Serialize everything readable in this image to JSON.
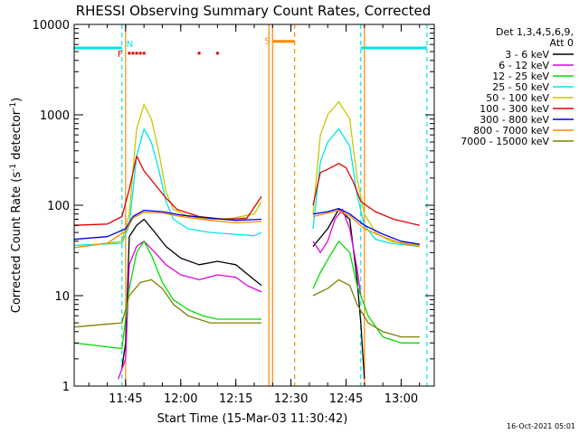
{
  "chart_data": {
    "type": "line",
    "title": "RHESSI Observing Summary Count Rates, Corrected",
    "xlabel": "Start Time (15-Mar-03 11:30:42)",
    "ylabel": "Corrected Count Rate (s",
    "ylabel_sup": "-1",
    "ylabel_mid": " detector",
    "ylabel_end": ")",
    "y_scale": "log",
    "ylim": [
      1,
      10000
    ],
    "xlim": [
      "11:31",
      "13:09"
    ],
    "y_ticks": [
      {
        "value": 1,
        "label": "1"
      },
      {
        "value": 10,
        "label": "10"
      },
      {
        "value": 100,
        "label": "100"
      },
      {
        "value": 1000,
        "label": "1000"
      },
      {
        "value": 10000,
        "label": "10000"
      }
    ],
    "x_ticks": [
      {
        "value": "11:45",
        "label": "11:45"
      },
      {
        "value": "12:00",
        "label": "12:00"
      },
      {
        "value": "12:15",
        "label": "12:15"
      },
      {
        "value": "12:30",
        "label": "12:30"
      },
      {
        "value": "12:45",
        "label": "12:45"
      },
      {
        "value": "13:00",
        "label": "13:00"
      }
    ],
    "legend_title": "Det 1,3,4,5,6,9,",
    "legend_subtitle": "Att 0",
    "legend_position": "right",
    "series": [
      {
        "name": "3 - 6 keV",
        "color": "#000000",
        "points": [
          [
            "11:44",
            1.6
          ],
          [
            "11:45",
            3
          ],
          [
            "11:46",
            45
          ],
          [
            "11:48",
            60
          ],
          [
            "11:50",
            70
          ],
          [
            "11:53",
            50
          ],
          [
            "11:56",
            35
          ],
          [
            "12:00",
            26
          ],
          [
            "12:05",
            22
          ],
          [
            "12:10",
            24
          ],
          [
            "12:15",
            22
          ],
          [
            "12:20",
            15
          ],
          [
            "12:22",
            13
          ],
          [
            "12:35",
            null
          ],
          [
            "12:36",
            35
          ],
          [
            "12:40",
            55
          ],
          [
            "12:43",
            90
          ],
          [
            "12:46",
            70
          ],
          [
            "12:48",
            15
          ],
          [
            "12:49",
            5
          ],
          [
            "12:50",
            1.2
          ]
        ]
      },
      {
        "name": "6 - 12 keV",
        "color": "#e000e0",
        "points": [
          [
            "11:43",
            1.2
          ],
          [
            "11:45",
            2
          ],
          [
            "11:46",
            22
          ],
          [
            "11:48",
            35
          ],
          [
            "11:50",
            40
          ],
          [
            "11:53",
            30
          ],
          [
            "11:56",
            22
          ],
          [
            "12:00",
            17
          ],
          [
            "12:05",
            15
          ],
          [
            "12:10",
            17
          ],
          [
            "12:15",
            16
          ],
          [
            "12:18",
            13
          ],
          [
            "12:22",
            11
          ],
          [
            "12:35",
            null
          ],
          [
            "12:36",
            40
          ],
          [
            "12:38",
            30
          ],
          [
            "12:40",
            40
          ],
          [
            "12:42",
            70
          ],
          [
            "12:44",
            90
          ],
          [
            "12:46",
            55
          ],
          [
            "12:48",
            20
          ],
          [
            "12:49",
            10
          ]
        ]
      },
      {
        "name": "12 - 25 keV",
        "color": "#00dd00",
        "points": [
          [
            "11:31",
            3
          ],
          [
            "11:44",
            2.6
          ],
          [
            "11:46",
            12
          ],
          [
            "11:48",
            30
          ],
          [
            "11:50",
            40
          ],
          [
            "11:52",
            28
          ],
          [
            "11:55",
            14
          ],
          [
            "11:58",
            9
          ],
          [
            "12:02",
            7
          ],
          [
            "12:06",
            6
          ],
          [
            "12:10",
            5.5
          ],
          [
            "12:15",
            5.5
          ],
          [
            "12:20",
            5.5
          ],
          [
            "12:22",
            5.5
          ],
          [
            "12:35",
            null
          ],
          [
            "12:36",
            12
          ],
          [
            "12:38",
            18
          ],
          [
            "12:40",
            25
          ],
          [
            "12:43",
            40
          ],
          [
            "12:46",
            30
          ],
          [
            "12:48",
            13
          ],
          [
            "12:51",
            6
          ],
          [
            "12:55",
            3.5
          ],
          [
            "13:00",
            3
          ],
          [
            "13:05",
            3
          ]
        ]
      },
      {
        "name": "25 - 50 keV",
        "color": "#00e6e6",
        "points": [
          [
            "11:31",
            36
          ],
          [
            "11:44",
            38
          ],
          [
            "11:46",
            60
          ],
          [
            "11:48",
            350
          ],
          [
            "11:50",
            700
          ],
          [
            "11:52",
            500
          ],
          [
            "11:54",
            250
          ],
          [
            "11:56",
            110
          ],
          [
            "11:58",
            70
          ],
          [
            "12:02",
            55
          ],
          [
            "12:08",
            50
          ],
          [
            "12:14",
            48
          ],
          [
            "12:20",
            46
          ],
          [
            "12:22",
            50
          ],
          [
            "12:35",
            null
          ],
          [
            "12:36",
            55
          ],
          [
            "12:38",
            300
          ],
          [
            "12:40",
            500
          ],
          [
            "12:43",
            700
          ],
          [
            "12:46",
            450
          ],
          [
            "12:48",
            130
          ],
          [
            "12:50",
            60
          ],
          [
            "12:53",
            42
          ],
          [
            "12:57",
            38
          ],
          [
            "13:05",
            35
          ]
        ]
      },
      {
        "name": "50 - 100 keV",
        "color": "#c8c800",
        "points": [
          [
            "11:31",
            34
          ],
          [
            "11:44",
            40
          ],
          [
            "11:46",
            80
          ],
          [
            "11:48",
            700
          ],
          [
            "11:50",
            1300
          ],
          [
            "11:52",
            900
          ],
          [
            "11:54",
            400
          ],
          [
            "11:56",
            140
          ],
          [
            "11:58",
            90
          ],
          [
            "12:02",
            75
          ],
          [
            "12:08",
            70
          ],
          [
            "12:14",
            72
          ],
          [
            "12:20",
            80
          ],
          [
            "12:22",
            110
          ],
          [
            "12:35",
            null
          ],
          [
            "12:36",
            80
          ],
          [
            "12:38",
            600
          ],
          [
            "12:40",
            1000
          ],
          [
            "12:43",
            1400
          ],
          [
            "12:46",
            900
          ],
          [
            "12:48",
            200
          ],
          [
            "12:50",
            80
          ],
          [
            "12:53",
            50
          ],
          [
            "12:57",
            40
          ],
          [
            "13:05",
            36
          ]
        ]
      },
      {
        "name": "100 - 300 keV",
        "color": "#e00000",
        "points": [
          [
            "11:31",
            60
          ],
          [
            "11:40",
            62
          ],
          [
            "11:44",
            75
          ],
          [
            "11:46",
            150
          ],
          [
            "11:48",
            350
          ],
          [
            "11:50",
            240
          ],
          [
            "11:53",
            170
          ],
          [
            "11:56",
            120
          ],
          [
            "11:59",
            90
          ],
          [
            "12:05",
            75
          ],
          [
            "12:12",
            70
          ],
          [
            "12:18",
            72
          ],
          [
            "12:22",
            125
          ],
          [
            "12:35",
            null
          ],
          [
            "12:36",
            100
          ],
          [
            "12:38",
            230
          ],
          [
            "12:40",
            250
          ],
          [
            "12:43",
            290
          ],
          [
            "12:45",
            260
          ],
          [
            "12:47",
            180
          ],
          [
            "12:49",
            110
          ],
          [
            "12:53",
            85
          ],
          [
            "12:58",
            70
          ],
          [
            "13:05",
            60
          ]
        ]
      },
      {
        "name": "300 - 800 keV",
        "color": "#0000e0",
        "points": [
          [
            "11:31",
            42
          ],
          [
            "11:40",
            45
          ],
          [
            "11:45",
            55
          ],
          [
            "11:47",
            75
          ],
          [
            "11:50",
            88
          ],
          [
            "11:55",
            85
          ],
          [
            "12:00",
            78
          ],
          [
            "12:08",
            72
          ],
          [
            "12:15",
            68
          ],
          [
            "12:22",
            70
          ],
          [
            "12:35",
            null
          ],
          [
            "12:36",
            80
          ],
          [
            "12:40",
            85
          ],
          [
            "12:43",
            92
          ],
          [
            "12:46",
            80
          ],
          [
            "12:50",
            60
          ],
          [
            "12:55",
            48
          ],
          [
            "13:00",
            40
          ],
          [
            "13:05",
            37
          ]
        ]
      },
      {
        "name": "800 - 7000 keV",
        "color": "#ff8800",
        "points": [
          [
            "11:31",
            34
          ],
          [
            "11:40",
            38
          ],
          [
            "11:45",
            52
          ],
          [
            "11:47",
            72
          ],
          [
            "11:50",
            84
          ],
          [
            "11:55",
            82
          ],
          [
            "12:00",
            75
          ],
          [
            "12:08",
            68
          ],
          [
            "12:15",
            64
          ],
          [
            "12:22",
            66
          ],
          [
            "12:35",
            null
          ],
          [
            "12:36",
            75
          ],
          [
            "12:40",
            82
          ],
          [
            "12:43",
            88
          ],
          [
            "12:46",
            76
          ],
          [
            "12:50",
            55
          ],
          [
            "12:55",
            45
          ],
          [
            "13:00",
            38
          ],
          [
            "13:05",
            35
          ]
        ]
      },
      {
        "name": "7000 - 15000 keV",
        "color": "#808000",
        "points": [
          [
            "11:31",
            4.5
          ],
          [
            "11:44",
            5
          ],
          [
            "11:46",
            10
          ],
          [
            "11:49",
            14
          ],
          [
            "11:52",
            15
          ],
          [
            "11:55",
            12
          ],
          [
            "11:58",
            8
          ],
          [
            "12:02",
            6
          ],
          [
            "12:08",
            5
          ],
          [
            "12:15",
            5
          ],
          [
            "12:22",
            5
          ],
          [
            "12:35",
            null
          ],
          [
            "12:36",
            10
          ],
          [
            "12:40",
            12
          ],
          [
            "12:43",
            15
          ],
          [
            "12:46",
            13
          ],
          [
            "12:48",
            8
          ],
          [
            "12:51",
            5
          ],
          [
            "12:55",
            4
          ],
          [
            "13:00",
            3.5
          ],
          [
            "13:05",
            3.5
          ]
        ]
      }
    ],
    "markers": {
      "N": {
        "label": "N",
        "color": "#00e6e6",
        "bars": [
          [
            "11:31",
            "11:44"
          ],
          [
            "12:49",
            "13:07"
          ]
        ],
        "level": 5500
      },
      "S": {
        "label": "S",
        "color": "#ff8800",
        "bars": [
          [
            "12:25",
            "12:31"
          ]
        ],
        "level": 6500
      },
      "F": {
        "label": "F",
        "color": "#e00000",
        "dots": [
          "11:46",
          "11:47",
          "11:48",
          "11:49",
          "11:50",
          "12:05",
          "12:10"
        ],
        "level": 4800
      }
    },
    "vlines": [
      {
        "time": "11:44",
        "color": "#00e6e6",
        "style": "dashed"
      },
      {
        "time": "11:45",
        "color": "#ff8800",
        "style": "solid"
      },
      {
        "time": "12:24",
        "color": "#ff8800",
        "style": "solid"
      },
      {
        "time": "12:25",
        "color": "#ff8800",
        "style": "solid"
      },
      {
        "time": "12:31",
        "color": "#ff8800",
        "style": "dashed"
      },
      {
        "time": "12:49",
        "color": "#00e6e6",
        "style": "dashed"
      },
      {
        "time": "12:50",
        "color": "#ff8800",
        "style": "solid"
      },
      {
        "time": "13:07",
        "color": "#00e6e6",
        "style": "dashed"
      }
    ]
  },
  "stamp": "16-Oct-2021 05:01"
}
